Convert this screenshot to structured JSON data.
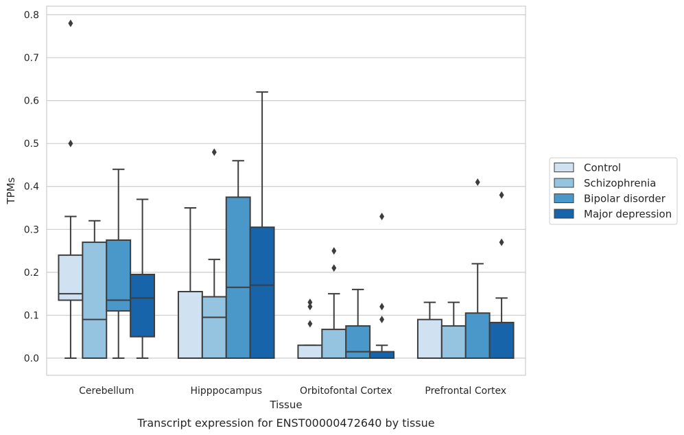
{
  "chart_data": {
    "type": "box",
    "caption": "Transcript expression for ENST00000472640 by tissue",
    "xlabel": "Tissue",
    "ylabel": "TPMs",
    "ylim": [
      -0.04,
      0.82
    ],
    "yticks": [
      0.0,
      0.1,
      0.2,
      0.3,
      0.4,
      0.5,
      0.6,
      0.7,
      0.8
    ],
    "ytick_labels": [
      "0.0",
      "0.1",
      "0.2",
      "0.3",
      "0.4",
      "0.5",
      "0.6",
      "0.7",
      "0.8"
    ],
    "grid": true,
    "legend_position": "right",
    "categories": [
      "Cerebellum",
      "Hipppocampus",
      "Orbitofontal Cortex",
      "Prefrontal Cortex"
    ],
    "series": [
      {
        "name": "Control",
        "color": "#d0e1f2",
        "boxes": [
          {
            "whislo": 0.0,
            "q1": 0.135,
            "med": 0.15,
            "q3": 0.24,
            "whishi": 0.33,
            "fliers": [
              0.5,
              0.78
            ]
          },
          {
            "whislo": 0.0,
            "q1": 0.0,
            "med": 0.0,
            "q3": 0.155,
            "whishi": 0.35,
            "fliers": []
          },
          {
            "whislo": 0.0,
            "q1": 0.0,
            "med": 0.0,
            "q3": 0.03,
            "whishi": 0.03,
            "fliers": [
              0.08,
              0.12,
              0.13
            ]
          },
          {
            "whislo": 0.0,
            "q1": 0.0,
            "med": 0.0,
            "q3": 0.09,
            "whishi": 0.13,
            "fliers": []
          }
        ]
      },
      {
        "name": "Schizophrenia",
        "color": "#94c4df",
        "boxes": [
          {
            "whislo": 0.0,
            "q1": 0.0,
            "med": 0.09,
            "q3": 0.27,
            "whishi": 0.32,
            "fliers": []
          },
          {
            "whislo": 0.0,
            "q1": 0.0,
            "med": 0.095,
            "q3": 0.143,
            "whishi": 0.23,
            "fliers": [
              0.48
            ]
          },
          {
            "whislo": 0.0,
            "q1": 0.0,
            "med": 0.0,
            "q3": 0.067,
            "whishi": 0.15,
            "fliers": [
              0.21,
              0.25
            ]
          },
          {
            "whislo": 0.0,
            "q1": 0.0,
            "med": 0.0,
            "q3": 0.075,
            "whishi": 0.13,
            "fliers": []
          }
        ]
      },
      {
        "name": "Bipolar disorder",
        "color": "#4a98c9",
        "boxes": [
          {
            "whislo": 0.0,
            "q1": 0.11,
            "med": 0.135,
            "q3": 0.275,
            "whishi": 0.44,
            "fliers": []
          },
          {
            "whislo": 0.0,
            "q1": 0.0,
            "med": 0.165,
            "q3": 0.375,
            "whishi": 0.46,
            "fliers": []
          },
          {
            "whislo": 0.0,
            "q1": 0.0,
            "med": 0.015,
            "q3": 0.075,
            "whishi": 0.16,
            "fliers": []
          },
          {
            "whislo": 0.0,
            "q1": 0.0,
            "med": 0.0,
            "q3": 0.105,
            "whishi": 0.22,
            "fliers": [
              0.41
            ]
          }
        ]
      },
      {
        "name": "Major depression",
        "color": "#1764ab",
        "boxes": [
          {
            "whislo": 0.0,
            "q1": 0.05,
            "med": 0.14,
            "q3": 0.195,
            "whishi": 0.37,
            "fliers": []
          },
          {
            "whislo": 0.0,
            "q1": 0.0,
            "med": 0.17,
            "q3": 0.305,
            "whishi": 0.62,
            "fliers": []
          },
          {
            "whislo": 0.0,
            "q1": 0.0,
            "med": 0.0,
            "q3": 0.015,
            "whishi": 0.03,
            "fliers": [
              0.09,
              0.12,
              0.33
            ]
          },
          {
            "whislo": 0.0,
            "q1": 0.0,
            "med": 0.0,
            "q3": 0.083,
            "whishi": 0.14,
            "fliers": [
              0.27,
              0.38
            ]
          }
        ]
      }
    ]
  }
}
